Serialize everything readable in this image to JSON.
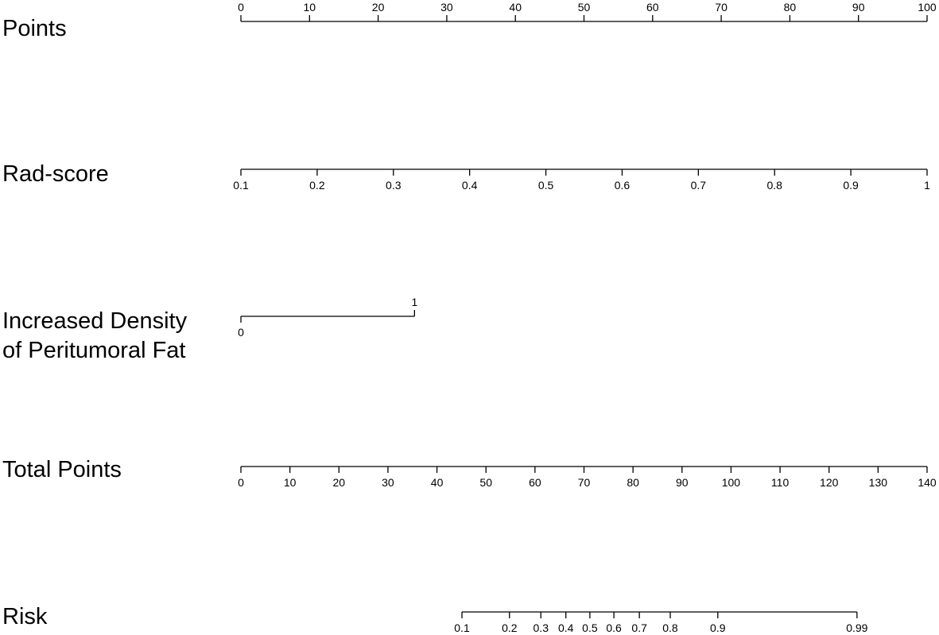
{
  "chart_data": {
    "type": "nomogram",
    "rows": [
      {
        "label": [
          "Points"
        ],
        "ticks": [
          0,
          10,
          20,
          30,
          40,
          50,
          60,
          70,
          80,
          90,
          100
        ],
        "lim": [
          0,
          100
        ],
        "label_side": "above"
      },
      {
        "label": [
          "Rad-score"
        ],
        "ticks": [
          0.1,
          0.2,
          0.3,
          0.4,
          0.5,
          0.6,
          0.7,
          0.8,
          0.9,
          1
        ],
        "lim": [
          0.1,
          1
        ],
        "points": [
          0,
          100
        ],
        "label_side": "below"
      },
      {
        "label": [
          "Increased Density",
          "of Peritumoral Fat"
        ],
        "ticks": [
          0,
          1
        ],
        "lim": [
          0,
          1
        ],
        "points": [
          0,
          25.3
        ],
        "label_side": "alternate"
      },
      {
        "label": [
          "Total Points"
        ],
        "ticks": [
          0,
          10,
          20,
          30,
          40,
          50,
          60,
          70,
          80,
          90,
          100,
          110,
          120,
          130,
          140
        ],
        "lim": [
          0,
          140
        ],
        "label_side": "below"
      },
      {
        "label": [
          "Risk"
        ],
        "ticks": [
          0.1,
          0.2,
          0.3,
          0.4,
          0.5,
          0.6,
          0.7,
          0.8,
          0.9,
          0.99
        ],
        "tick_total_points": [
          45.1,
          54.8,
          61.2,
          66.3,
          71.2,
          76.1,
          81.3,
          87.6,
          97.3,
          125.7
        ],
        "label_side": "below"
      }
    ]
  }
}
